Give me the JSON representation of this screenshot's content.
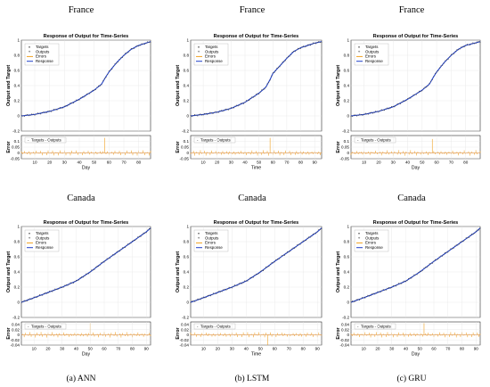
{
  "rows": [
    {
      "country": "France"
    },
    {
      "country": "Canada"
    }
  ],
  "captions": [
    "(a) ANN",
    "(b) LSTM",
    "(c) GRU"
  ],
  "panels": [
    {
      "id": "france-ann",
      "title": "Response of Output for Time-Series",
      "ylabel": "Output and Target",
      "error_ylabel": "Error",
      "xlabel": "Day",
      "legend": [
        "Targets",
        "Outputs",
        "Errors",
        "Response"
      ],
      "error_legend": [
        "Targets - Outputs"
      ]
    },
    {
      "id": "france-lstm",
      "title": "Response of Output for Time-Series",
      "ylabel": "Output and Target",
      "error_ylabel": "Error",
      "xlabel": "Time",
      "legend": [
        "Targets",
        "Outputs",
        "Errors",
        "Response"
      ],
      "error_legend": [
        "Targets - Outputs"
      ]
    },
    {
      "id": "france-gru",
      "title": "Response of Output for Time-Series",
      "ylabel": "Output and Target",
      "error_ylabel": "Error",
      "xlabel": "Day",
      "legend": [
        "Targets",
        "Outputs",
        "Errors",
        "Response"
      ],
      "error_legend": [
        "Targets - Outputs"
      ]
    },
    {
      "id": "canada-ann",
      "title": "Response of Output for Time-Series",
      "ylabel": "Output and Target",
      "error_ylabel": "Error",
      "xlabel": "Day",
      "legend": [
        "Targets",
        "Outputs",
        "Errors",
        "Response"
      ],
      "error_legend": [
        "Targets - Outputs"
      ]
    },
    {
      "id": "canada-lstm",
      "title": "Response of Output for Time-Series",
      "ylabel": "Output and Target",
      "error_ylabel": "Error",
      "xlabel": "Time",
      "legend": [
        "Targets",
        "Outputs",
        "Errors",
        "Response"
      ],
      "error_legend": [
        "Targets - Outputs"
      ]
    },
    {
      "id": "canada-gru",
      "title": "Response of Output for Time-Series",
      "ylabel": "Output and Target",
      "error_ylabel": "Error",
      "xlabel": "Day",
      "legend": [
        "Targets",
        "Outputs",
        "Errors",
        "Response"
      ],
      "error_legend": [
        "Targets - Outputs"
      ]
    }
  ],
  "colors": {
    "response": "#1f3fc9",
    "targets": "#4a4a4a",
    "errors": "#f0a020",
    "zero_line": "#d06000"
  },
  "chart_data": [
    {
      "type": "line",
      "panel": "france-ann",
      "xlim": [
        1,
        88
      ],
      "ylim": [
        -0.2,
        1
      ],
      "yticks": [
        -0.2,
        0,
        0.2,
        0.4,
        0.6,
        0.8,
        1
      ],
      "xticks": [
        10,
        20,
        30,
        40,
        50,
        60,
        70,
        80
      ],
      "x": [
        1,
        10,
        20,
        30,
        40,
        45,
        50,
        55,
        58,
        60,
        65,
        70,
        75,
        80,
        88
      ],
      "series": [
        {
          "name": "Response",
          "values": [
            0.0,
            0.02,
            0.06,
            0.12,
            0.22,
            0.28,
            0.34,
            0.42,
            0.52,
            0.58,
            0.7,
            0.8,
            0.88,
            0.93,
            0.98
          ]
        }
      ],
      "error": {
        "ylim": [
          -0.05,
          0.15
        ],
        "yticks": [
          -0.05,
          0,
          0.05,
          0.1
        ],
        "spike_x": [
          57
        ],
        "spike_values": [
          0.13
        ]
      }
    },
    {
      "type": "line",
      "panel": "france-lstm",
      "xlim": [
        1,
        95
      ],
      "ylim": [
        -0.2,
        1
      ],
      "yticks": [
        -0.2,
        0,
        0.2,
        0.4,
        0.6,
        0.8,
        1
      ],
      "xticks": [
        10,
        20,
        30,
        40,
        50,
        60,
        70,
        80,
        90
      ],
      "x": [
        1,
        10,
        20,
        30,
        40,
        45,
        50,
        55,
        58,
        60,
        65,
        70,
        75,
        80,
        90,
        95
      ],
      "series": [
        {
          "name": "Response",
          "values": [
            0.0,
            0.02,
            0.05,
            0.1,
            0.18,
            0.24,
            0.3,
            0.38,
            0.48,
            0.56,
            0.66,
            0.76,
            0.85,
            0.9,
            0.96,
            0.98
          ]
        }
      ],
      "error": {
        "ylim": [
          -0.05,
          0.15
        ],
        "yticks": [
          -0.05,
          0,
          0.05,
          0.1
        ],
        "spike_x": [
          58
        ],
        "spike_values": [
          0.13
        ]
      }
    },
    {
      "type": "line",
      "panel": "france-gru",
      "xlim": [
        1,
        90
      ],
      "ylim": [
        -0.2,
        1
      ],
      "yticks": [
        -0.2,
        0,
        0.2,
        0.4,
        0.6,
        0.8,
        1
      ],
      "xticks": [
        10,
        20,
        30,
        40,
        50,
        60,
        70,
        80
      ],
      "x": [
        1,
        10,
        20,
        30,
        40,
        45,
        50,
        55,
        58,
        60,
        65,
        70,
        75,
        80,
        90
      ],
      "series": [
        {
          "name": "Response",
          "values": [
            0.0,
            0.02,
            0.06,
            0.12,
            0.22,
            0.28,
            0.34,
            0.42,
            0.52,
            0.58,
            0.7,
            0.8,
            0.88,
            0.93,
            0.98
          ]
        }
      ],
      "error": {
        "ylim": [
          -0.05,
          0.15
        ],
        "yticks": [
          -0.05,
          0,
          0.05,
          0.1
        ],
        "spike_x": [
          57
        ],
        "spike_values": [
          0.12
        ]
      }
    },
    {
      "type": "line",
      "panel": "canada-ann",
      "xlim": [
        1,
        93
      ],
      "ylim": [
        -0.2,
        1
      ],
      "yticks": [
        -0.2,
        0,
        0.2,
        0.4,
        0.6,
        0.8,
        1
      ],
      "xticks": [
        10,
        20,
        30,
        40,
        50,
        60,
        70,
        80,
        90
      ],
      "x": [
        1,
        10,
        20,
        30,
        40,
        50,
        60,
        70,
        80,
        90,
        93
      ],
      "series": [
        {
          "name": "Response",
          "values": [
            0.0,
            0.06,
            0.13,
            0.2,
            0.28,
            0.4,
            0.54,
            0.67,
            0.8,
            0.93,
            0.98
          ]
        }
      ],
      "error": {
        "ylim": [
          -0.04,
          0.05
        ],
        "yticks": [
          -0.04,
          -0.02,
          0,
          0.02,
          0.04
        ],
        "spike_x": [
          50
        ],
        "spike_values": [
          0.045
        ]
      }
    },
    {
      "type": "line",
      "panel": "canada-lstm",
      "xlim": [
        1,
        93
      ],
      "ylim": [
        -0.2,
        1
      ],
      "yticks": [
        -0.2,
        0,
        0.2,
        0.4,
        0.6,
        0.8,
        1
      ],
      "xticks": [
        10,
        20,
        30,
        40,
        50,
        60,
        70,
        80,
        90
      ],
      "x": [
        1,
        10,
        20,
        30,
        40,
        50,
        60,
        70,
        80,
        90,
        93
      ],
      "series": [
        {
          "name": "Response",
          "values": [
            0.0,
            0.06,
            0.13,
            0.2,
            0.28,
            0.4,
            0.54,
            0.67,
            0.8,
            0.93,
            0.98
          ]
        }
      ],
      "error": {
        "ylim": [
          -0.04,
          0.05
        ],
        "yticks": [
          -0.04,
          -0.02,
          0,
          0.02,
          0.04
        ],
        "spike_x": [
          55
        ],
        "spike_values": [
          -0.04
        ]
      }
    },
    {
      "type": "line",
      "panel": "canada-gru",
      "xlim": [
        1,
        93
      ],
      "ylim": [
        -0.2,
        1
      ],
      "yticks": [
        -0.2,
        0,
        0.2,
        0.4,
        0.6,
        0.8,
        1
      ],
      "xticks": [
        10,
        20,
        30,
        40,
        50,
        60,
        70,
        80,
        90
      ],
      "x": [
        1,
        10,
        20,
        30,
        40,
        50,
        60,
        70,
        80,
        90,
        93
      ],
      "series": [
        {
          "name": "Response",
          "values": [
            0.0,
            0.06,
            0.13,
            0.2,
            0.28,
            0.4,
            0.54,
            0.67,
            0.8,
            0.93,
            0.98
          ]
        }
      ],
      "error": {
        "ylim": [
          -0.04,
          0.05
        ],
        "yticks": [
          -0.04,
          -0.02,
          0,
          0.02,
          0.04
        ],
        "spike_x": [
          53
        ],
        "spike_values": [
          0.045
        ]
      }
    }
  ]
}
